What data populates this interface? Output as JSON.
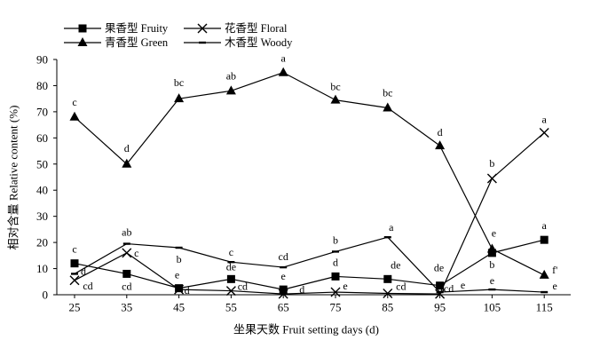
{
  "chart_data": {
    "type": "line",
    "xlabel": "坐果天数 Fruit setting days (d)",
    "ylabel": "相对含量 Relative content (%)",
    "categories": [
      "25",
      "35",
      "45",
      "55",
      "65",
      "75",
      "85",
      "95",
      "105",
      "115"
    ],
    "yticks": [
      "0",
      "10",
      "20",
      "30",
      "40",
      "50",
      "60",
      "70",
      "80",
      "90"
    ],
    "ylim": [
      0,
      90
    ],
    "grid": false,
    "legend_position": "top-left",
    "series": [
      {
        "name": "果香型 Fruity",
        "marker": "square",
        "color": "#000000",
        "values": [
          12,
          8,
          2.5,
          6,
          2,
          7,
          6,
          3.5,
          16,
          21
        ],
        "labels": [
          "c",
          "cd",
          "e",
          "de",
          "e",
          "d",
          "de",
          "de",
          "b",
          "a"
        ]
      },
      {
        "name": "花香型 Floral",
        "marker": "x",
        "color": "#000000",
        "values": [
          5.5,
          16,
          2,
          1.5,
          0.3,
          1,
          0.5,
          0.3,
          44.5,
          62
        ],
        "labels": [
          "cd",
          "c",
          "d",
          "cd",
          "d",
          "e",
          "cd",
          "cd",
          "b",
          "a"
        ]
      },
      {
        "name": "青香型 Green",
        "marker": "triangle",
        "color": "#000000",
        "values": [
          68,
          50,
          75,
          78,
          85,
          74.5,
          71.5,
          57,
          17.5,
          7.5
        ],
        "labels": [
          "c",
          "d",
          "bc",
          "ab",
          "a",
          "bc",
          "bc",
          "d",
          "e",
          "f'"
        ]
      },
      {
        "name": "木香型 Woody",
        "marker": "dash",
        "color": "#000000",
        "values": [
          8,
          19.5,
          18,
          12.5,
          10.5,
          16.5,
          22,
          1,
          2,
          1
        ],
        "labels": [
          "d",
          "ab",
          "b",
          "c",
          "cd",
          "b",
          "a",
          "e",
          "e",
          "e"
        ]
      }
    ]
  }
}
